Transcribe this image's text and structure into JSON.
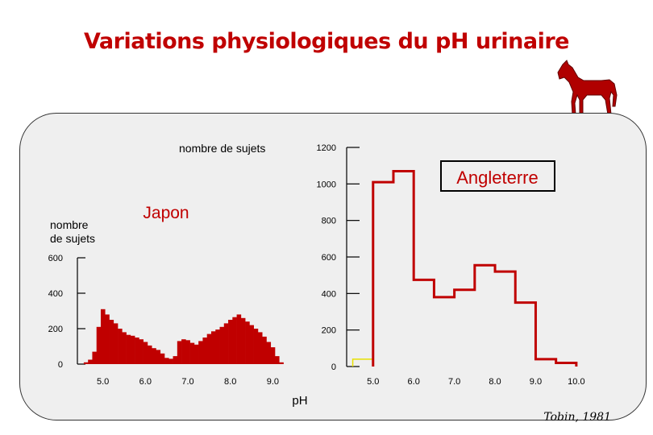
{
  "title": "Variations physiologiques du pH urinaire",
  "source": "Tobin, 1981",
  "xlabel": "pH",
  "colors": {
    "title": "#c00000",
    "series": "#c00000",
    "panel": "#efefef"
  },
  "icons": {
    "logo": "horse-icon"
  },
  "chart_data": [
    {
      "type": "bar",
      "series_name": "Japon",
      "ylabel": "nombre\nde sujets",
      "ylabel_lines": [
        "nombre",
        "de sujets"
      ],
      "y_ticks": [
        0,
        200,
        400,
        600
      ],
      "x_ticks": [
        "5.0",
        "6.0",
        "7.0",
        "8.0",
        "9.0"
      ],
      "x_range": [
        4.4,
        9.6
      ],
      "ylim": [
        0,
        600
      ],
      "bin_start": 4.55,
      "bin_width": 0.1,
      "values": [
        10,
        25,
        70,
        210,
        310,
        280,
        250,
        230,
        200,
        180,
        165,
        160,
        150,
        140,
        125,
        105,
        90,
        80,
        60,
        35,
        30,
        45,
        130,
        140,
        135,
        120,
        110,
        130,
        150,
        170,
        185,
        195,
        210,
        230,
        250,
        265,
        280,
        260,
        240,
        220,
        200,
        180,
        155,
        125,
        95,
        45,
        10
      ]
    },
    {
      "type": "line",
      "series_name": "Angleterre",
      "ylabel": "nombre de sujets",
      "y_ticks": [
        0,
        200,
        400,
        600,
        800,
        1000,
        1200
      ],
      "x_ticks": [
        "5.0",
        "6.0",
        "7.0",
        "8.0",
        "9.0",
        "10.0"
      ],
      "x_range": [
        4.35,
        10.3
      ],
      "ylim": [
        0,
        1200
      ],
      "steps": [
        {
          "x0": 4.5,
          "x1": 5.0,
          "y": 5
        },
        {
          "x0": 5.0,
          "x1": 5.5,
          "y": 1010
        },
        {
          "x0": 5.5,
          "x1": 6.0,
          "y": 1070
        },
        {
          "x0": 6.0,
          "x1": 6.5,
          "y": 475
        },
        {
          "x0": 6.5,
          "x1": 7.0,
          "y": 380
        },
        {
          "x0": 7.0,
          "x1": 7.5,
          "y": 420
        },
        {
          "x0": 7.5,
          "x1": 8.0,
          "y": 555
        },
        {
          "x0": 8.0,
          "x1": 8.5,
          "y": 520
        },
        {
          "x0": 8.5,
          "x1": 9.0,
          "y": 350
        },
        {
          "x0": 9.0,
          "x1": 9.5,
          "y": 40
        },
        {
          "x0": 9.5,
          "x1": 10.0,
          "y": 20
        }
      ]
    }
  ]
}
